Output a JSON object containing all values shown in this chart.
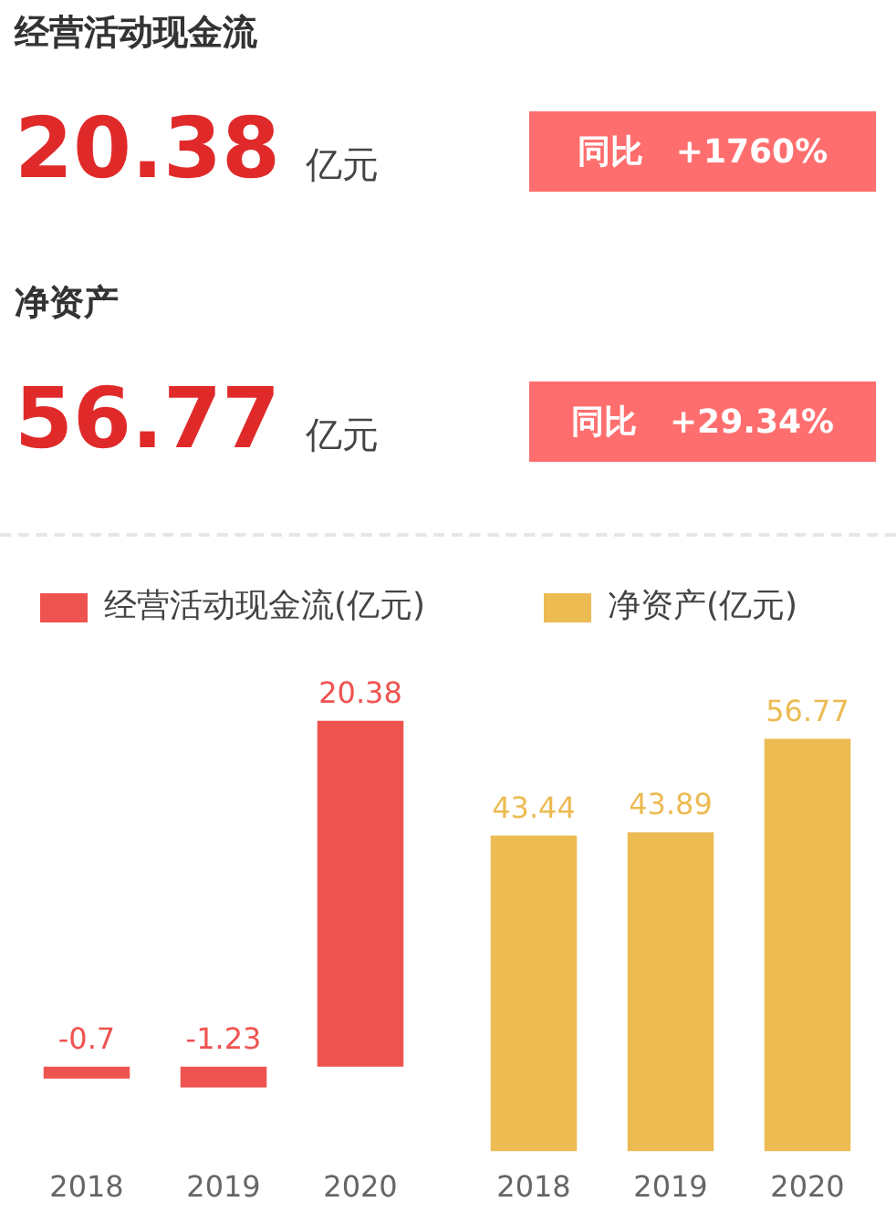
{
  "chart_data": [
    {
      "type": "other",
      "title": "经营活动现金流",
      "annotations": [
        "20.38",
        "亿元",
        "同比",
        "+1760%"
      ]
    },
    {
      "type": "other",
      "title": "净资产",
      "annotations": [
        "56.77",
        "亿元",
        "同比",
        "+29.34%"
      ]
    },
    {
      "type": "bar",
      "categories": [
        "2018",
        "2019",
        "2020"
      ],
      "series": [
        {
          "name": "经营活动现金流(亿元)",
          "color": "#ef5350",
          "values": [
            -0.7,
            -1.23,
            20.38
          ]
        }
      ],
      "data_labels": true,
      "legend": "top left",
      "tick_labels": "x"
    },
    {
      "type": "bar",
      "categories": [
        "2018",
        "2019",
        "2020"
      ],
      "series": [
        {
          "name": "净资产(亿元)",
          "color": "#ecbb52",
          "values": [
            43.44,
            43.89,
            56.77
          ]
        }
      ],
      "data_labels": true,
      "legend": "top",
      "tick_labels": "x"
    }
  ]
}
